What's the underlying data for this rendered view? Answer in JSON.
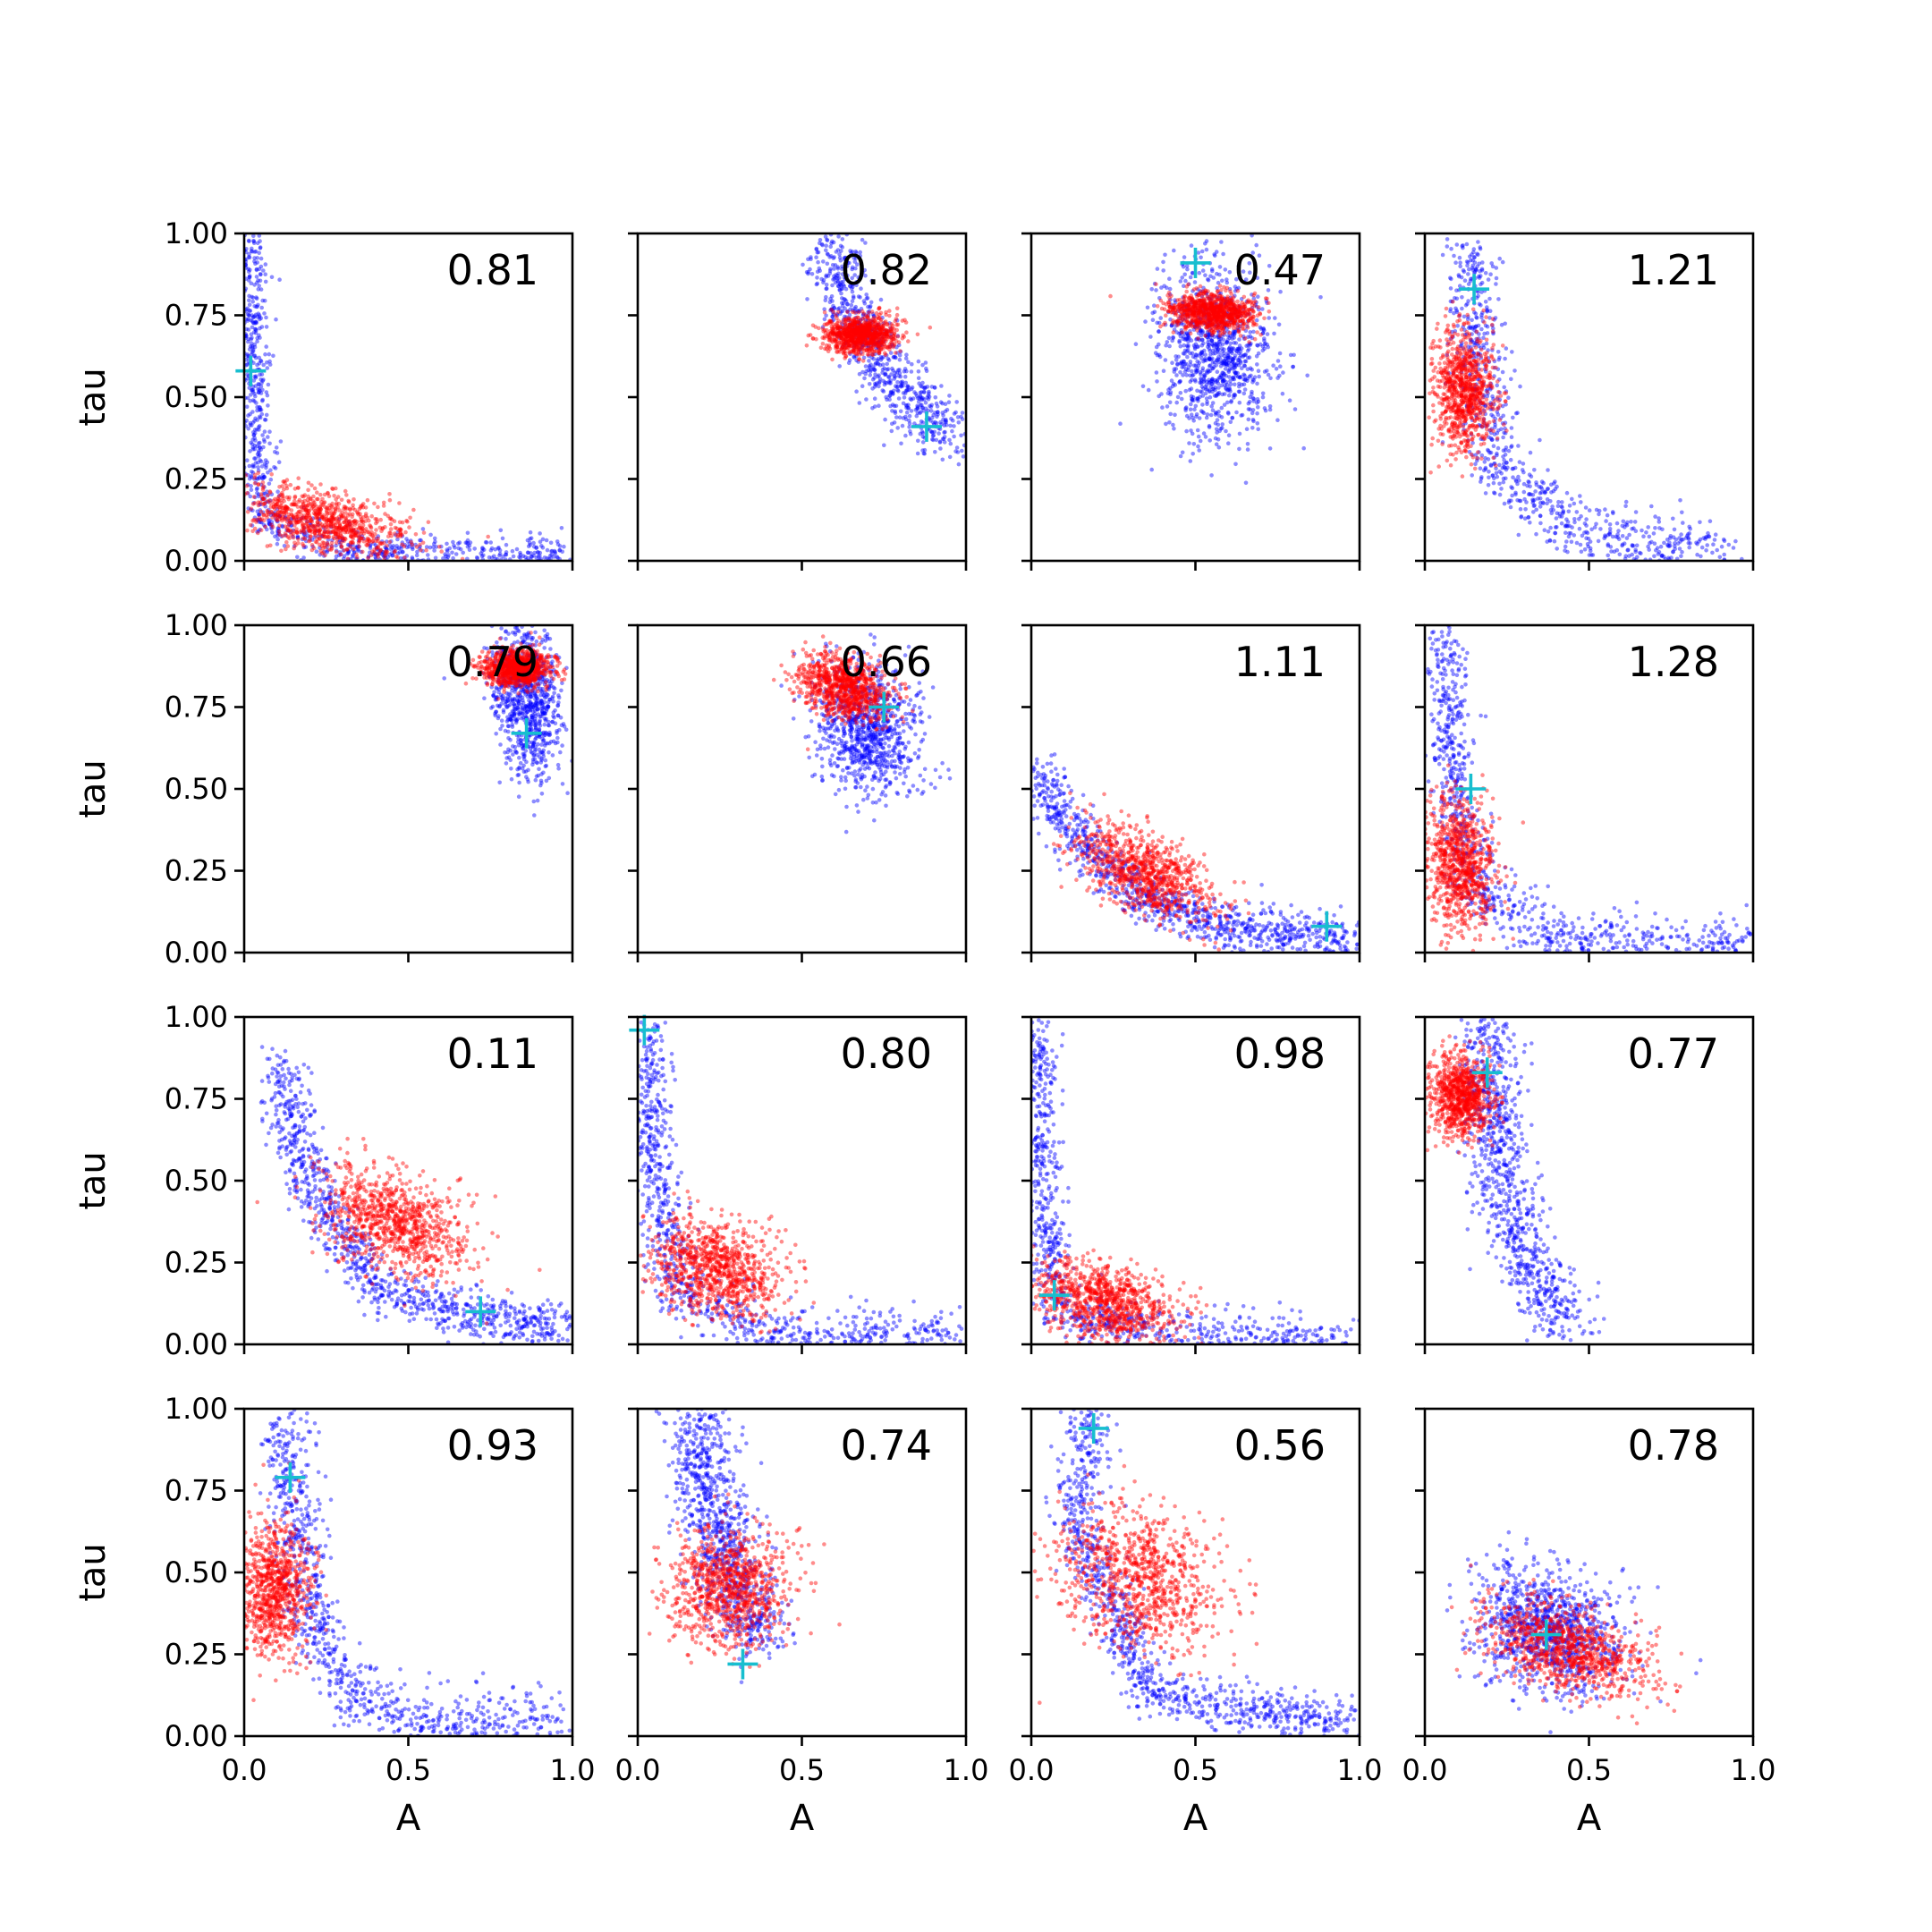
{
  "chart_data": {
    "type": "scatter",
    "layout": {
      "rows": 4,
      "cols": 4,
      "sharex": true,
      "sharey": true
    },
    "xlabel": "A",
    "ylabel": "tau",
    "xlim": [
      0.0,
      1.0
    ],
    "ylim": [
      0.0,
      1.0
    ],
    "xticks": [
      "0.0",
      "0.5",
      "1.0"
    ],
    "yticks": [
      "0.00",
      "0.25",
      "0.50",
      "0.75",
      "1.00"
    ],
    "grid": false,
    "colors": {
      "blue_series": "#0000ff",
      "red_series": "#ff0000",
      "marker": "#17becf"
    },
    "marker_style": "plus",
    "panels": [
      {
        "label": "0.81",
        "marker": [
          0.02,
          0.58
        ],
        "blue": [
          {
            "shape": "curve",
            "path": [
              [
                0.02,
                0.98
              ],
              [
                0.03,
                0.5
              ],
              [
                0.06,
                0.12
              ],
              [
                0.3,
                0.03
              ],
              [
                0.98,
                0.01
              ]
            ],
            "spread": [
              0.025,
              0.03
            ],
            "n": 950
          }
        ],
        "red": [
          {
            "shape": "blob",
            "center": [
              0.25,
              0.12
            ],
            "sd": [
              0.13,
              0.045
            ],
            "rot": -12,
            "n": 850
          }
        ]
      },
      {
        "label": "0.82",
        "marker": [
          0.88,
          0.41
        ],
        "blue": [
          {
            "shape": "curve",
            "path": [
              [
                0.58,
                0.97
              ],
              [
                0.65,
                0.78
              ],
              [
                0.75,
                0.58
              ],
              [
                0.88,
                0.43
              ],
              [
                0.95,
                0.38
              ]
            ],
            "spread": [
              0.045,
              0.045
            ],
            "n": 750
          }
        ],
        "red": [
          {
            "shape": "blob",
            "center": [
              0.68,
              0.69
            ],
            "sd": [
              0.055,
              0.028
            ],
            "rot": 0,
            "n": 900
          }
        ]
      },
      {
        "label": "0.47",
        "marker": [
          0.5,
          0.91
        ],
        "blue": [
          {
            "shape": "blob",
            "center": [
              0.56,
              0.64
            ],
            "sd": [
              0.085,
              0.13
            ],
            "rot": 0,
            "n": 1000
          }
        ],
        "red": [
          {
            "shape": "blob",
            "center": [
              0.55,
              0.76
            ],
            "sd": [
              0.065,
              0.028
            ],
            "rot": -5,
            "n": 900
          }
        ]
      },
      {
        "label": "1.21",
        "marker": [
          0.15,
          0.83
        ],
        "blue": [
          {
            "shape": "curve",
            "path": [
              [
                0.14,
                0.98
              ],
              [
                0.16,
                0.6
              ],
              [
                0.22,
                0.3
              ],
              [
                0.45,
                0.08
              ],
              [
                0.95,
                0.01
              ]
            ],
            "spread": [
              0.04,
              0.05
            ],
            "n": 850
          }
        ],
        "red": [
          {
            "shape": "blob",
            "center": [
              0.12,
              0.52
            ],
            "sd": [
              0.045,
              0.09
            ],
            "rot": 0,
            "n": 850
          }
        ]
      },
      {
        "label": "0.79",
        "marker": [
          0.86,
          0.67
        ],
        "blue": [
          {
            "shape": "blob",
            "center": [
              0.86,
              0.78
            ],
            "sd": [
              0.05,
              0.12
            ],
            "rot": 8,
            "n": 850
          }
        ],
        "red": [
          {
            "shape": "blob",
            "center": [
              0.83,
              0.87
            ],
            "sd": [
              0.05,
              0.028
            ],
            "rot": 0,
            "n": 900
          }
        ]
      },
      {
        "label": "0.66",
        "marker": [
          0.75,
          0.75
        ],
        "blue": [
          {
            "shape": "blob",
            "center": [
              0.7,
              0.68
            ],
            "sd": [
              0.075,
              0.1
            ],
            "rot": 15,
            "n": 850
          }
        ],
        "red": [
          {
            "shape": "blob",
            "center": [
              0.63,
              0.81
            ],
            "sd": [
              0.07,
              0.045
            ],
            "rot": -20,
            "n": 900
          }
        ]
      },
      {
        "label": "1.11",
        "marker": [
          0.9,
          0.08
        ],
        "blue": [
          {
            "shape": "curve",
            "path": [
              [
                0.02,
                0.55
              ],
              [
                0.15,
                0.33
              ],
              [
                0.35,
                0.16
              ],
              [
                0.6,
                0.08
              ],
              [
                0.98,
                0.04
              ]
            ],
            "spread": [
              0.04,
              0.035
            ],
            "n": 950
          }
        ],
        "red": [
          {
            "shape": "blob",
            "center": [
              0.35,
              0.24
            ],
            "sd": [
              0.11,
              0.055
            ],
            "rot": -28,
            "n": 850
          }
        ]
      },
      {
        "label": "1.28",
        "marker": [
          0.14,
          0.5
        ],
        "blue": [
          {
            "shape": "curve",
            "path": [
              [
                0.06,
                0.97
              ],
              [
                0.08,
                0.55
              ],
              [
                0.15,
                0.2
              ],
              [
                0.4,
                0.03
              ],
              [
                0.98,
                0.01
              ]
            ],
            "spread": [
              0.035,
              0.045
            ],
            "n": 900
          }
        ],
        "red": [
          {
            "shape": "blob",
            "center": [
              0.11,
              0.27
            ],
            "sd": [
              0.05,
              0.1
            ],
            "rot": 0,
            "n": 850
          }
        ]
      },
      {
        "label": "0.11",
        "marker": [
          0.72,
          0.1
        ],
        "blue": [
          {
            "shape": "curve",
            "path": [
              [
                0.1,
                0.85
              ],
              [
                0.22,
                0.45
              ],
              [
                0.4,
                0.18
              ],
              [
                0.7,
                0.08
              ],
              [
                0.98,
                0.05
              ]
            ],
            "spread": [
              0.04,
              0.035
            ],
            "n": 950
          }
        ],
        "red": [
          {
            "shape": "blob",
            "center": [
              0.46,
              0.37
            ],
            "sd": [
              0.12,
              0.07
            ],
            "rot": -25,
            "n": 900
          }
        ]
      },
      {
        "label": "0.80",
        "marker": [
          0.02,
          0.96
        ],
        "blue": [
          {
            "shape": "curve",
            "path": [
              [
                0.03,
                0.97
              ],
              [
                0.05,
                0.5
              ],
              [
                0.12,
                0.15
              ],
              [
                0.4,
                0.03
              ],
              [
                0.98,
                0.01
              ]
            ],
            "spread": [
              0.035,
              0.045
            ],
            "n": 950
          }
        ],
        "red": [
          {
            "shape": "blob",
            "center": [
              0.24,
              0.23
            ],
            "sd": [
              0.1,
              0.07
            ],
            "rot": -20,
            "n": 900
          }
        ]
      },
      {
        "label": "0.98",
        "marker": [
          0.07,
          0.15
        ],
        "blue": [
          {
            "shape": "curve",
            "path": [
              [
                0.02,
                0.97
              ],
              [
                0.03,
                0.5
              ],
              [
                0.08,
                0.1
              ],
              [
                0.4,
                0.02
              ],
              [
                0.98,
                0.005
              ]
            ],
            "spread": [
              0.03,
              0.04
            ],
            "n": 950
          }
        ],
        "red": [
          {
            "shape": "blob",
            "center": [
              0.22,
              0.13
            ],
            "sd": [
              0.11,
              0.055
            ],
            "rot": -15,
            "n": 900
          }
        ]
      },
      {
        "label": "0.77",
        "marker": [
          0.19,
          0.83
        ],
        "blue": [
          {
            "shape": "curve",
            "path": [
              [
                0.19,
                0.99
              ],
              [
                0.2,
                0.75
              ],
              [
                0.24,
                0.45
              ],
              [
                0.33,
                0.2
              ],
              [
                0.45,
                0.07
              ]
            ],
            "spread": [
              0.045,
              0.06
            ],
            "n": 900
          }
        ],
        "red": [
          {
            "shape": "blob",
            "center": [
              0.11,
              0.76
            ],
            "sd": [
              0.045,
              0.06
            ],
            "rot": 0,
            "n": 850
          }
        ]
      },
      {
        "label": "0.93",
        "marker": [
          0.14,
          0.79
        ],
        "blue": [
          {
            "shape": "curve",
            "path": [
              [
                0.14,
                0.98
              ],
              [
                0.16,
                0.6
              ],
              [
                0.22,
                0.3
              ],
              [
                0.4,
                0.07
              ],
              [
                0.95,
                0.02
              ]
            ],
            "spread": [
              0.04,
              0.05
            ],
            "n": 900
          }
        ],
        "red": [
          {
            "shape": "blob",
            "center": [
              0.09,
              0.45
            ],
            "sd": [
              0.055,
              0.1
            ],
            "rot": 0,
            "n": 850
          }
        ]
      },
      {
        "label": "0.74",
        "marker": [
          0.32,
          0.22
        ],
        "blue": [
          {
            "shape": "curve",
            "path": [
              [
                0.18,
                0.98
              ],
              [
                0.22,
                0.7
              ],
              [
                0.3,
                0.45
              ],
              [
                0.38,
                0.3
              ]
            ],
            "spread": [
              0.05,
              0.06
            ],
            "n": 900
          }
        ],
        "red": [
          {
            "shape": "blob",
            "center": [
              0.28,
              0.45
            ],
            "sd": [
              0.09,
              0.09
            ],
            "rot": -30,
            "n": 900
          }
        ]
      },
      {
        "label": "0.56",
        "marker": [
          0.19,
          0.94
        ],
        "blue": [
          {
            "shape": "curve",
            "path": [
              [
                0.17,
                0.98
              ],
              [
                0.14,
                0.65
              ],
              [
                0.25,
                0.4
              ],
              [
                0.35,
                0.14
              ],
              [
                0.6,
                0.08
              ],
              [
                0.98,
                0.04
              ]
            ],
            "spread": [
              0.04,
              0.035
            ],
            "n": 950
          }
        ],
        "red": [
          {
            "shape": "blob",
            "center": [
              0.33,
              0.48
            ],
            "sd": [
              0.13,
              0.1
            ],
            "rot": -30,
            "n": 900
          }
        ]
      },
      {
        "label": "0.78",
        "marker": [
          0.37,
          0.31
        ],
        "blue": [
          {
            "shape": "blob",
            "center": [
              0.38,
              0.32
            ],
            "sd": [
              0.12,
              0.09
            ],
            "rot": -25,
            "n": 1000
          }
        ],
        "red": [
          {
            "shape": "blob",
            "center": [
              0.43,
              0.27
            ],
            "sd": [
              0.13,
              0.06
            ],
            "rot": -18,
            "n": 900
          }
        ]
      }
    ]
  }
}
